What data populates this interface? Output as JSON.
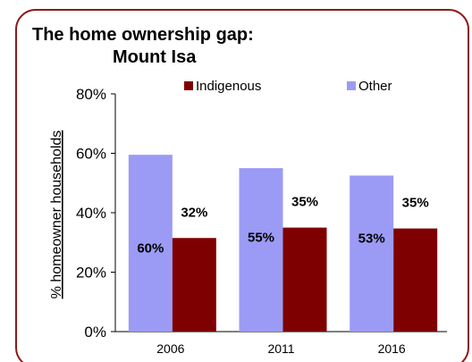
{
  "chart_data": {
    "type": "bar",
    "title_line1": "The home ownership gap:",
    "title_line2": "Mount Isa",
    "xlabel": "",
    "ylabel": "% homeowner households",
    "categories": [
      "2006",
      "2011",
      "2016"
    ],
    "ylim": [
      0,
      80
    ],
    "yticks": [
      0,
      20,
      40,
      60,
      80
    ],
    "ytick_labels": [
      "0%",
      "20%",
      "40%",
      "60%",
      "80%"
    ],
    "legend_position": "top",
    "grid": false,
    "series": [
      {
        "name": "Other",
        "color": "#9b9bf5",
        "values": [
          59.5,
          55,
          52.5
        ],
        "labels": [
          "60%",
          "55%",
          "53%"
        ]
      },
      {
        "name": "Indigenous",
        "color": "#7f0000",
        "values": [
          31.5,
          35,
          34.7
        ],
        "labels": [
          "32%",
          "35%",
          "35%"
        ]
      }
    ],
    "frame_color": "#8b1a1a"
  }
}
